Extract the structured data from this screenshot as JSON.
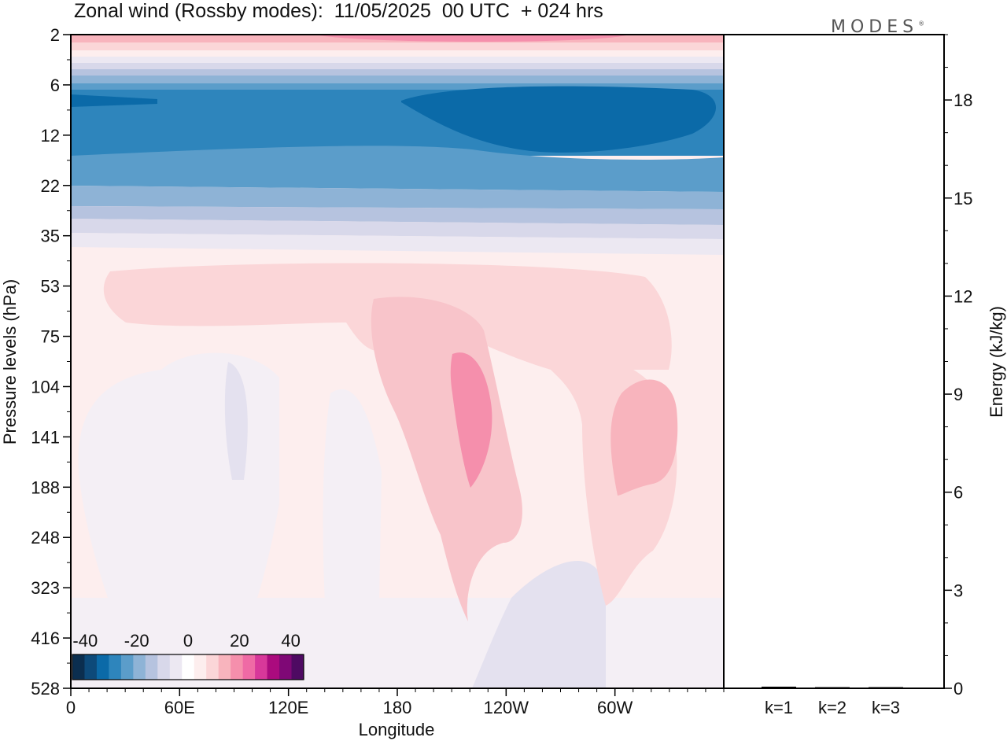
{
  "title": "Zonal wind (Rossby modes):  11/05/2025  00 UTC  + 024 hrs",
  "logo": "MODES",
  "logo_mark": "®",
  "chart_data": [
    {
      "type": "heatmap",
      "title": "Zonal wind (Rossby modes):  11/05/2025  00 UTC  + 024 hrs",
      "xlabel": "Longitude",
      "ylabel": "Pressure levels (hPa)",
      "x_ticks": [
        "0",
        "60E",
        "120E",
        "180",
        "120W",
        "60W"
      ],
      "x_tick_degrees": [
        0,
        60,
        120,
        180,
        240,
        300
      ],
      "xlim": [
        0,
        360
      ],
      "y_ticks": [
        "2",
        "6",
        "12",
        "22",
        "35",
        "53",
        "75",
        "104",
        "141",
        "188",
        "248",
        "323",
        "416",
        "528"
      ],
      "colorbar": {
        "tick_labels": [
          "-40",
          "-20",
          "0",
          "20",
          "40"
        ],
        "tick_values": [
          -40,
          -20,
          0,
          20,
          40
        ],
        "range": [
          -45,
          45
        ],
        "colors": [
          "#0b2e4f",
          "#0d4a7a",
          "#0b6aa8",
          "#2e85bc",
          "#5b9dca",
          "#8eb3d6",
          "#b6c3df",
          "#d8d8ea",
          "#ece8f2",
          "#ffffff",
          "#fdeeee",
          "#fbd6d8",
          "#f8b4bd",
          "#f58fac",
          "#ef6aa5",
          "#d8389a",
          "#ab0b7e",
          "#7f0876",
          "#4e0a62"
        ]
      },
      "field_levels": [
        {
          "level": "2",
          "west_value": 20,
          "east_value": 25
        },
        {
          "level": "6",
          "west_value": -35,
          "east_value": -35
        },
        {
          "level": "12",
          "west_value": -28,
          "east_value": -33
        },
        {
          "level": "22",
          "west_value": -15,
          "east_value": -20
        },
        {
          "level": "35",
          "west_value": -5,
          "east_value": -5
        },
        {
          "level": "53",
          "west_value": 5,
          "east_value": 5
        },
        {
          "level": "104",
          "west_value": 0,
          "east_value": 10
        },
        {
          "level": "528",
          "west_value": 0,
          "east_value": 0
        }
      ]
    },
    {
      "type": "bar",
      "ylabel": "Energy (kJ/kg)",
      "categories": [
        "k=1",
        "k=2",
        "k=3"
      ],
      "values": [
        0.05,
        0.02,
        0.02
      ],
      "y_ticks": [
        "0",
        "3",
        "6",
        "9",
        "12",
        "15",
        "18"
      ],
      "ylim": [
        0,
        20
      ]
    }
  ]
}
